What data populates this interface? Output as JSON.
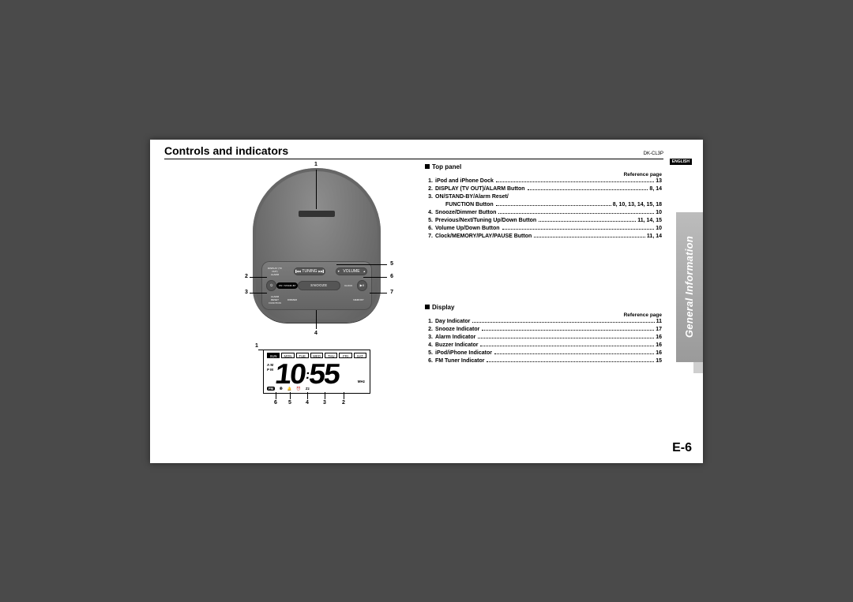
{
  "header": {
    "title": "Controls and indicators",
    "model": "DK-CL3P",
    "language": "ENGLISH"
  },
  "side_tab": "General Information",
  "page_number": "E-6",
  "device": {
    "buttons": {
      "standby": "ON / STAND-BY",
      "snooze": "SNOOZE",
      "tuning_label": "TUNING",
      "volume_label": "VOLUME",
      "display_label": "DISPLAY (TV OUT)",
      "alarm_label": "ALARM",
      "function_label": "FUNCTION",
      "dimmer_label": "DIMMER",
      "clock_label": "CLOCK",
      "memory_label": "MEMORY",
      "prev": "▐◀◀",
      "next": "▶▶▌",
      "play": "▶II",
      "down": "▼",
      "up": "▲"
    },
    "callouts": {
      "n1": "1",
      "n2": "2",
      "n3": "3",
      "n4": "4",
      "n5": "5",
      "n6": "6",
      "n7": "7"
    }
  },
  "display": {
    "days": [
      "SUN",
      "MON",
      "TUE",
      "WED",
      "THU",
      "FRI",
      "SAT"
    ],
    "am": "A M",
    "pm": "P M",
    "time_h": "10",
    "time_m": "55",
    "mhz": "MHz",
    "fm": "FM",
    "ipod_glyph": "⦾",
    "buzzer_glyph": "🔔",
    "snooze_glyph": "Zz",
    "alarm_glyph": "⏰",
    "callouts": {
      "n1": "1",
      "n2": "2",
      "n3": "3",
      "n4": "4",
      "n5": "5",
      "n6": "6"
    }
  },
  "sections": [
    {
      "title": "Top panel",
      "ref": "Reference page",
      "items": [
        {
          "num": "1.",
          "label": "iPod and iPhone Dock",
          "pg": "13"
        },
        {
          "num": "2.",
          "label": "DISPLAY (TV OUT)/ALARM Button",
          "pg": "8, 14"
        },
        {
          "num": "3.",
          "label": "ON/STAND-BY/Alarm Reset/",
          "pg": "",
          "nobreak": true
        },
        {
          "num": "",
          "label": "FUNCTION Button",
          "pg": "8, 10, 13, 14, 15, 18",
          "sub": true
        },
        {
          "num": "4.",
          "label": "Snooze/Dimmer Button",
          "pg": "10"
        },
        {
          "num": "5.",
          "label": "Previous/Next/Tuning Up/Down Button",
          "pg": "11, 14, 15"
        },
        {
          "num": "6.",
          "label": "Volume Up/Down Button",
          "pg": "10"
        },
        {
          "num": "7.",
          "label": "Clock/MEMORY/PLAY/PAUSE Button",
          "pg": "11, 14"
        }
      ]
    },
    {
      "title": "Display",
      "ref": "Reference page",
      "items": [
        {
          "num": "1.",
          "label": "Day Indicator",
          "pg": "11"
        },
        {
          "num": "2.",
          "label": "Snooze Indicator",
          "pg": "17"
        },
        {
          "num": "3.",
          "label": "Alarm Indicator",
          "pg": "16"
        },
        {
          "num": "4.",
          "label": "Buzzer Indicator",
          "pg": "16"
        },
        {
          "num": "5.",
          "label": "iPod/iPhone Indicator",
          "pg": "16"
        },
        {
          "num": "6.",
          "label": "FM Tuner Indicator",
          "pg": "15"
        }
      ]
    }
  ]
}
